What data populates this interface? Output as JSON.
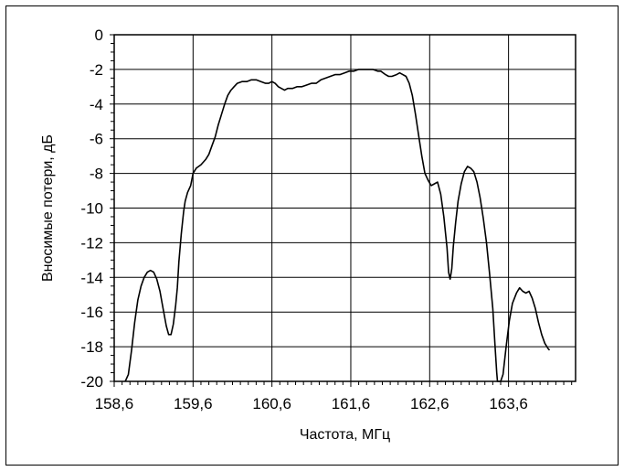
{
  "chart_data": {
    "type": "line",
    "title": "",
    "xlabel": "Частота, МГц",
    "ylabel": "Вносимые потери, дБ",
    "xlim": [
      158.6,
      164.45
    ],
    "ylim": [
      -20,
      0
    ],
    "x_ticks": [
      158.6,
      159.6,
      160.6,
      161.6,
      162.6,
      163.6
    ],
    "x_tick_labels": [
      "158,6",
      "159,6",
      "160,6",
      "161,6",
      "162,6",
      "163,6"
    ],
    "y_ticks": [
      0,
      -2,
      -4,
      -6,
      -8,
      -10,
      -12,
      -14,
      -16,
      -18,
      -20
    ],
    "y_tick_labels": [
      "0",
      "-2",
      "-4",
      "-6",
      "-8",
      "-10",
      "-12",
      "-14",
      "-16",
      "-18",
      "-20"
    ],
    "grid": true,
    "line_color": "#000000",
    "series": [
      {
        "values": [
          [
            158.74,
            -20.0
          ],
          [
            158.78,
            -19.6
          ],
          [
            158.82,
            -18.2
          ],
          [
            158.86,
            -16.6
          ],
          [
            158.9,
            -15.3
          ],
          [
            158.94,
            -14.5
          ],
          [
            158.98,
            -14.0
          ],
          [
            159.02,
            -13.7
          ],
          [
            159.06,
            -13.6
          ],
          [
            159.1,
            -13.7
          ],
          [
            159.14,
            -14.1
          ],
          [
            159.18,
            -14.8
          ],
          [
            159.22,
            -15.8
          ],
          [
            159.26,
            -16.8
          ],
          [
            159.29,
            -17.3
          ],
          [
            159.32,
            -17.3
          ],
          [
            159.35,
            -16.7
          ],
          [
            159.38,
            -15.6
          ],
          [
            159.4,
            -14.6
          ],
          [
            159.42,
            -13.1
          ],
          [
            159.45,
            -11.5
          ],
          [
            159.48,
            -10.2
          ],
          [
            159.5,
            -9.6
          ],
          [
            159.53,
            -9.1
          ],
          [
            159.57,
            -8.7
          ],
          [
            159.6,
            -8.0
          ],
          [
            159.64,
            -7.7
          ],
          [
            159.7,
            -7.5
          ],
          [
            159.76,
            -7.2
          ],
          [
            159.8,
            -6.9
          ],
          [
            159.84,
            -6.4
          ],
          [
            159.88,
            -5.9
          ],
          [
            159.92,
            -5.2
          ],
          [
            159.96,
            -4.6
          ],
          [
            160.0,
            -4.0
          ],
          [
            160.04,
            -3.5
          ],
          [
            160.08,
            -3.2
          ],
          [
            160.12,
            -3.0
          ],
          [
            160.16,
            -2.8
          ],
          [
            160.22,
            -2.7
          ],
          [
            160.28,
            -2.7
          ],
          [
            160.34,
            -2.6
          ],
          [
            160.4,
            -2.6
          ],
          [
            160.46,
            -2.7
          ],
          [
            160.52,
            -2.8
          ],
          [
            160.56,
            -2.8
          ],
          [
            160.6,
            -2.7
          ],
          [
            160.64,
            -2.8
          ],
          [
            160.68,
            -3.0
          ],
          [
            160.72,
            -3.1
          ],
          [
            160.76,
            -3.2
          ],
          [
            160.8,
            -3.1
          ],
          [
            160.86,
            -3.1
          ],
          [
            160.92,
            -3.0
          ],
          [
            160.98,
            -3.0
          ],
          [
            161.04,
            -2.9
          ],
          [
            161.1,
            -2.8
          ],
          [
            161.16,
            -2.8
          ],
          [
            161.22,
            -2.6
          ],
          [
            161.28,
            -2.5
          ],
          [
            161.34,
            -2.4
          ],
          [
            161.4,
            -2.3
          ],
          [
            161.46,
            -2.3
          ],
          [
            161.52,
            -2.2
          ],
          [
            161.58,
            -2.1
          ],
          [
            161.64,
            -2.1
          ],
          [
            161.7,
            -2.0
          ],
          [
            161.76,
            -2.0
          ],
          [
            161.82,
            -2.0
          ],
          [
            161.88,
            -2.0
          ],
          [
            161.94,
            -2.1
          ],
          [
            161.98,
            -2.1
          ],
          [
            162.04,
            -2.3
          ],
          [
            162.08,
            -2.4
          ],
          [
            162.12,
            -2.4
          ],
          [
            162.18,
            -2.3
          ],
          [
            162.22,
            -2.2
          ],
          [
            162.26,
            -2.3
          ],
          [
            162.3,
            -2.4
          ],
          [
            162.34,
            -2.8
          ],
          [
            162.38,
            -3.5
          ],
          [
            162.42,
            -4.6
          ],
          [
            162.46,
            -5.8
          ],
          [
            162.5,
            -7.0
          ],
          [
            162.54,
            -8.0
          ],
          [
            162.58,
            -8.4
          ],
          [
            162.62,
            -8.7
          ],
          [
            162.66,
            -8.6
          ],
          [
            162.7,
            -8.5
          ],
          [
            162.74,
            -9.2
          ],
          [
            162.78,
            -10.5
          ],
          [
            162.82,
            -12.3
          ],
          [
            162.84,
            -13.7
          ],
          [
            162.86,
            -14.1
          ],
          [
            162.88,
            -13.5
          ],
          [
            162.9,
            -12.2
          ],
          [
            162.93,
            -10.8
          ],
          [
            162.96,
            -9.6
          ],
          [
            163.0,
            -8.6
          ],
          [
            163.04,
            -7.9
          ],
          [
            163.08,
            -7.6
          ],
          [
            163.12,
            -7.7
          ],
          [
            163.16,
            -7.9
          ],
          [
            163.2,
            -8.5
          ],
          [
            163.24,
            -9.4
          ],
          [
            163.28,
            -10.6
          ],
          [
            163.32,
            -12.0
          ],
          [
            163.36,
            -13.8
          ],
          [
            163.4,
            -15.8
          ],
          [
            163.43,
            -18.0
          ],
          [
            163.45,
            -19.5
          ],
          [
            163.46,
            -20.0
          ],
          [
            163.5,
            -20.0
          ],
          [
            163.53,
            -19.6
          ],
          [
            163.57,
            -18.0
          ],
          [
            163.61,
            -16.5
          ],
          [
            163.65,
            -15.5
          ],
          [
            163.7,
            -14.9
          ],
          [
            163.74,
            -14.6
          ],
          [
            163.78,
            -14.8
          ],
          [
            163.82,
            -14.9
          ],
          [
            163.86,
            -14.8
          ],
          [
            163.9,
            -15.2
          ],
          [
            163.94,
            -15.8
          ],
          [
            163.98,
            -16.6
          ],
          [
            164.02,
            -17.3
          ],
          [
            164.06,
            -17.8
          ],
          [
            164.1,
            -18.1
          ],
          [
            164.12,
            -18.2
          ]
        ]
      }
    ]
  }
}
